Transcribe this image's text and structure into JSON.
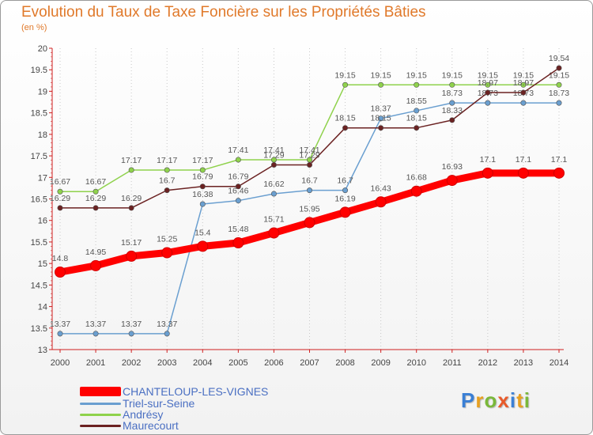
{
  "title": "Evolution du Taux de Taxe Foncière sur les Propriétés Bâties",
  "subtitle": "(en %)",
  "brand": {
    "text": "Proxiti",
    "letter_colors": [
      "#3a7fd5",
      "#e8a020",
      "#7ab83a",
      "#e85a2a",
      "#3a7fd5",
      "#e8a020",
      "#7ab83a"
    ]
  },
  "chart_data": {
    "type": "line",
    "x": [
      2000,
      2001,
      2002,
      2003,
      2004,
      2005,
      2006,
      2007,
      2008,
      2009,
      2010,
      2011,
      2012,
      2013,
      2014
    ],
    "ylim": [
      13,
      20
    ],
    "yticks": [
      "13",
      "13.5",
      "14",
      "14.5",
      "15",
      "15.5",
      "16",
      "16.5",
      "17",
      "17.5",
      "18",
      "18.5",
      "19",
      "19.5",
      "20"
    ],
    "grid": "vertical dotted",
    "series": [
      {
        "name": "CHANTELOUP-LES-VIGNES",
        "color": "#ff0000",
        "values": [
          14.8,
          14.95,
          15.17,
          15.25,
          15.4,
          15.48,
          15.71,
          15.95,
          16.19,
          16.43,
          16.68,
          16.93,
          17.1,
          17.1,
          17.1
        ],
        "labels": [
          "14.8",
          "14.95",
          "15.17",
          "15.25",
          "15.4",
          "15.48",
          "15.71",
          "15.95",
          "16.19",
          "16.43",
          "16.68",
          "16.93",
          "17.1",
          "17.1",
          "17.1"
        ]
      },
      {
        "name": "Triel-sur-Seine",
        "color": "#6a9fd0",
        "values": [
          13.37,
          13.37,
          13.37,
          13.37,
          16.38,
          16.46,
          16.62,
          16.7,
          16.7,
          18.37,
          18.55,
          18.73,
          18.73,
          18.73,
          18.73
        ],
        "labels": [
          "13.37",
          "13.37",
          "13.37",
          "13.37",
          "16.38",
          "16.46",
          "16.62",
          "16.7",
          "16.7",
          "18.37",
          "18.55",
          "18.73",
          "18.73",
          "18.73",
          "18.73"
        ]
      },
      {
        "name": "Andrésy",
        "color": "#8fd24c",
        "values": [
          16.67,
          16.67,
          17.17,
          17.17,
          17.17,
          17.41,
          17.41,
          17.41,
          19.15,
          19.15,
          19.15,
          19.15,
          19.15,
          19.15,
          19.15
        ],
        "labels": [
          "16.67",
          "16.67",
          "17.17",
          "17.17",
          "17.17",
          "17.41",
          "17.41",
          "17.41",
          "19.15",
          "19.15",
          "19.15",
          "19.15",
          "19.15",
          "19.15",
          "19.15"
        ]
      },
      {
        "name": "Maurecourt",
        "color": "#6b2222",
        "values": [
          16.29,
          16.29,
          16.29,
          16.7,
          16.79,
          16.79,
          17.29,
          17.29,
          18.15,
          18.15,
          18.15,
          18.33,
          18.97,
          18.97,
          19.54
        ],
        "labels": [
          "16.29",
          "16.29",
          "16.29",
          "16.7",
          "16.79",
          "16.79",
          "17.29",
          "17.29",
          "18.15",
          "18.15",
          "18.15",
          "18.33",
          "18.97",
          "18.97",
          "19.54"
        ]
      }
    ],
    "legend": [
      "CHANTELOUP-LES-VIGNES",
      "Triel-sur-Seine",
      "Andrésy",
      "Maurecourt"
    ]
  }
}
